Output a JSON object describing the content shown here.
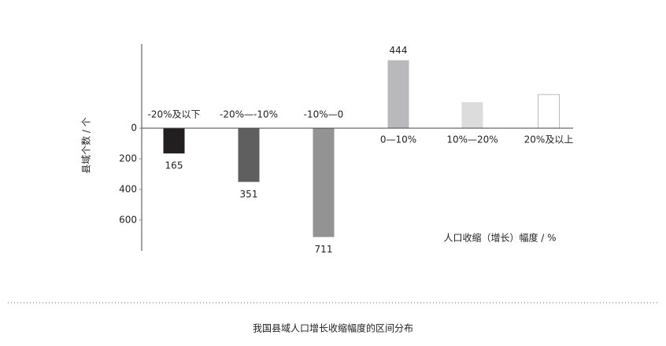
{
  "chart_data": {
    "type": "bar",
    "title": "我国县域人口增长收缩幅度的区间分布",
    "ylabel": "县域个数 / 个",
    "xlabel": "人口收缩（增长）幅度 / %",
    "categories": [
      "-20%及以下",
      "-20%—-10%",
      "-10%—0",
      "0—10%",
      "10%—20%",
      "20%及以上"
    ],
    "values": [
      -165,
      -351,
      -711,
      444,
      170,
      220
    ],
    "value_labels": [
      "165",
      "351",
      "711",
      "444",
      null,
      null
    ],
    "colors": [
      "#231f20",
      "#5f5f5f",
      "#939393",
      "#b9b9bb",
      "#dcdcdc",
      "#ffffff"
    ],
    "ylim": [
      -750,
      550
    ],
    "yticks": [
      {
        "value": 0,
        "label": "0"
      },
      {
        "value": -200,
        "label": "200"
      },
      {
        "value": -400,
        "label": "400"
      },
      {
        "value": -600,
        "label": "600"
      }
    ]
  }
}
